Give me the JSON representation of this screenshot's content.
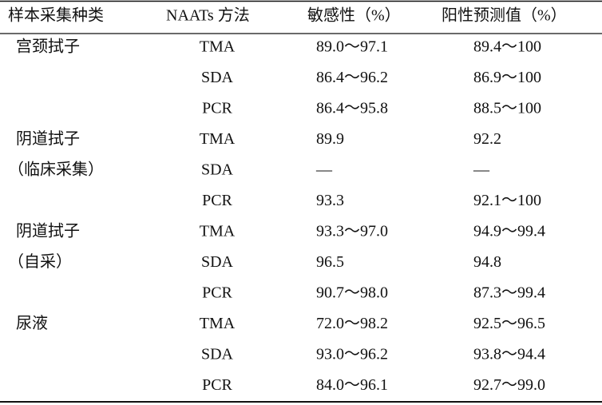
{
  "table": {
    "header": [
      "样本采集种类",
      "NAATs 方法",
      "敏感性（%）",
      "阳性预测值（%）"
    ],
    "groups": [
      {
        "label": [
          "宫颈拭子"
        ],
        "rows": [
          [
            "TMA",
            "89.0～97.1",
            "89.4～100"
          ],
          [
            "SDA",
            "86.4～96.2",
            "86.9～100"
          ],
          [
            "PCR",
            "86.4～95.8",
            "88.5～100"
          ]
        ]
      },
      {
        "label": [
          "阴道拭子",
          "（临床采集）"
        ],
        "rows": [
          [
            "TMA",
            "89.9",
            "92.2"
          ],
          [
            "SDA",
            "—",
            "—"
          ],
          [
            "PCR",
            "93.3",
            "92.1～100"
          ]
        ]
      },
      {
        "label": [
          "阴道拭子",
          "（自采）"
        ],
        "rows": [
          [
            "TMA",
            "93.3～97.0",
            "94.9～99.4"
          ],
          [
            "SDA",
            "96.5",
            "94.8"
          ],
          [
            "PCR",
            "90.7～98.0",
            "87.3～99.4"
          ]
        ]
      },
      {
        "label": [
          "尿液"
        ],
        "rows": [
          [
            "TMA",
            "72.0～98.2",
            "92.5～96.5"
          ],
          [
            "SDA",
            "93.0～96.2",
            "93.8～94.4"
          ],
          [
            "PCR",
            "84.0～96.1",
            "92.7～99.0"
          ]
        ]
      }
    ]
  }
}
